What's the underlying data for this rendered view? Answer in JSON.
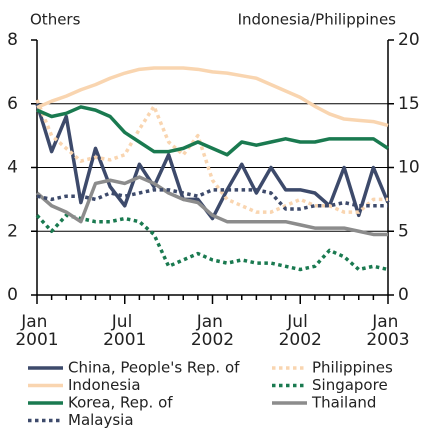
{
  "chart_data": {
    "type": "line",
    "y_label": "Others",
    "y2_label": "Indonesia/Philippines",
    "categories": [
      "Jan 2001",
      null,
      null,
      null,
      null,
      null,
      "Jul 2001",
      null,
      null,
      null,
      null,
      null,
      "Jan 2002",
      null,
      null,
      null,
      null,
      null,
      "Jul 2002",
      null,
      null,
      null,
      null,
      null,
      "Jan 2003"
    ],
    "ylim": [
      0,
      8
    ],
    "yticks": [
      0,
      2,
      4,
      6,
      8
    ],
    "y2lim": [
      0,
      20
    ],
    "y2ticks": [
      0,
      5,
      10,
      15,
      20
    ],
    "grid": true,
    "legend": "bottom",
    "series": [
      {
        "name": "China, People's Rep. of",
        "color": "#3d4a6b",
        "style": "solid",
        "values": [
          6.0,
          4.5,
          5.6,
          2.9,
          4.6,
          3.4,
          2.8,
          4.1,
          3.4,
          4.4,
          3.0,
          3.0,
          2.4,
          3.3,
          4.1,
          3.2,
          4.0,
          3.3,
          3.3,
          3.2,
          2.8,
          4.0,
          2.5,
          4.0,
          2.9
        ]
      },
      {
        "name": "Philippines",
        "color": "#f9d5b0",
        "style": "dotted",
        "axis": "y2",
        "values": [
          15.3,
          12.5,
          11.5,
          10.5,
          10.8,
          10.6,
          11.0,
          13.0,
          14.8,
          12.0,
          11.0,
          12.5,
          9.0,
          7.5,
          7.0,
          6.5,
          6.5,
          7.0,
          7.5,
          7.0,
          7.0,
          6.5,
          6.5,
          7.5,
          7.5
        ]
      },
      {
        "name": "Indonesia",
        "color": "#f9d5b0",
        "style": "solid",
        "axis": "y2",
        "values": [
          14.7,
          15.2,
          15.6,
          16.1,
          16.5,
          17.0,
          17.4,
          17.7,
          17.8,
          17.8,
          17.8,
          17.7,
          17.5,
          17.4,
          17.2,
          17.0,
          16.5,
          16.0,
          15.5,
          14.8,
          14.2,
          13.8,
          13.7,
          13.6,
          13.3
        ]
      },
      {
        "name": "Singapore",
        "color": "#1a7a50",
        "style": "dotted",
        "values": [
          2.5,
          2.0,
          2.5,
          2.4,
          2.3,
          2.3,
          2.4,
          2.3,
          1.9,
          0.9,
          1.1,
          1.3,
          1.1,
          1.0,
          1.1,
          1.0,
          1.0,
          0.9,
          0.8,
          0.9,
          1.4,
          1.2,
          0.8,
          0.9,
          0.8
        ]
      },
      {
        "name": "Korea, Rep. of",
        "color": "#1a7a50",
        "style": "solid",
        "values": [
          5.8,
          5.6,
          5.7,
          5.9,
          5.8,
          5.6,
          5.1,
          4.8,
          4.5,
          4.5,
          4.6,
          4.8,
          4.6,
          4.4,
          4.8,
          4.7,
          4.8,
          4.9,
          4.8,
          4.8,
          4.9,
          4.9,
          4.9,
          4.9,
          4.6
        ]
      },
      {
        "name": "Thailand",
        "color": "#8c8c8c",
        "style": "solid",
        "values": [
          3.2,
          2.8,
          2.6,
          2.3,
          3.5,
          3.6,
          3.5,
          3.7,
          3.5,
          3.2,
          3.0,
          2.9,
          2.5,
          2.3,
          2.3,
          2.3,
          2.3,
          2.3,
          2.2,
          2.1,
          2.1,
          2.1,
          2.0,
          1.9,
          1.9
        ]
      },
      {
        "name": "Malaysia",
        "color": "#3d4a6b",
        "style": "dotted",
        "values": [
          3.1,
          3.0,
          3.1,
          3.1,
          3.0,
          3.2,
          3.1,
          3.2,
          3.3,
          3.3,
          3.2,
          3.1,
          3.3,
          3.3,
          3.3,
          3.3,
          3.2,
          2.7,
          2.7,
          2.8,
          2.8,
          2.9,
          2.8,
          2.8,
          2.8
        ]
      }
    ]
  }
}
